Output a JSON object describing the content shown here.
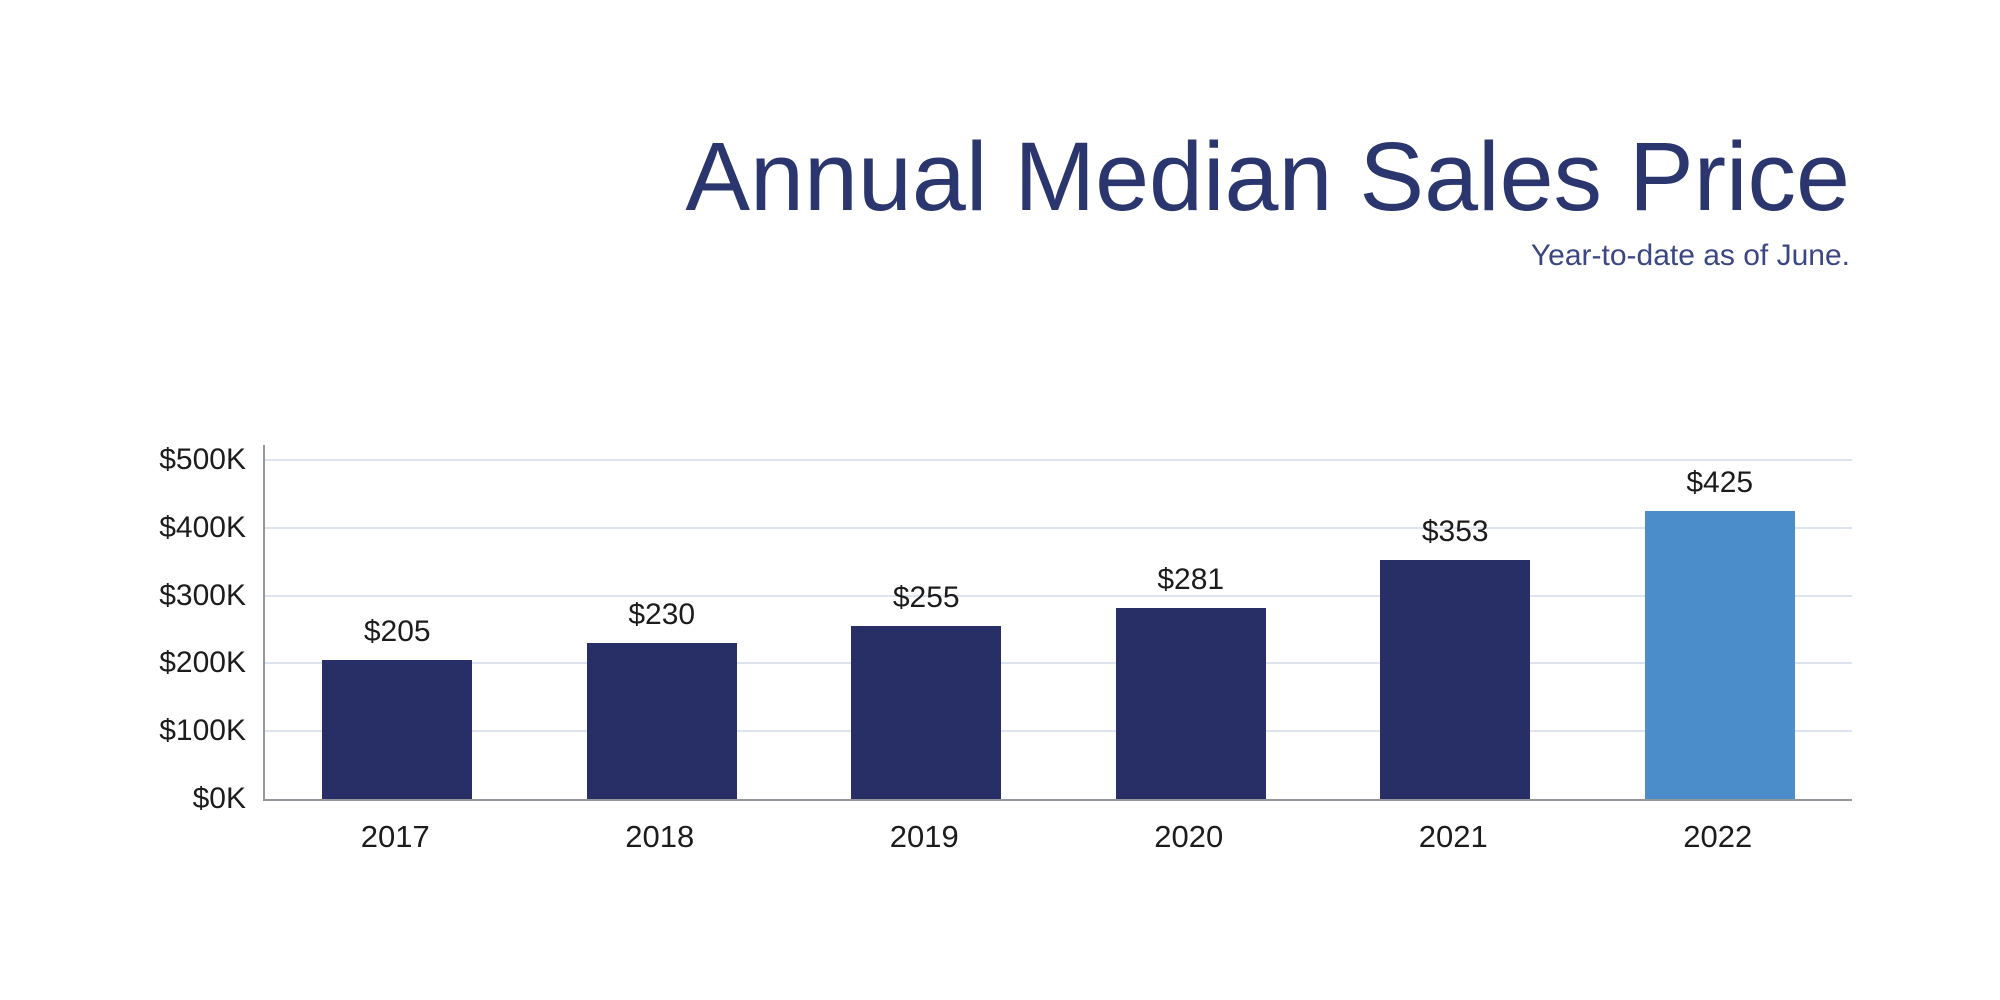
{
  "header": {
    "title": "Annual Median Sales Price",
    "subtitle": "Year-to-date as of June."
  },
  "colors": {
    "bar": "#282e66",
    "bar_highlight": "#4b8ccb",
    "gridline": "#dde4ef",
    "axis": "#95979c",
    "title": "#2b356e",
    "subtitle": "#3b4682",
    "label": "#1c1c1e"
  },
  "chart_data": {
    "type": "bar",
    "title": "Annual Median Sales Price",
    "subtitle": "Year-to-date as of June.",
    "categories": [
      "2017",
      "2018",
      "2019",
      "2020",
      "2021",
      "2022"
    ],
    "values": [
      205,
      230,
      255,
      281,
      353,
      425
    ],
    "value_labels": [
      "$205",
      "$230",
      "$255",
      "$281",
      "$353",
      "$425"
    ],
    "highlight_index": 5,
    "xlabel": "",
    "ylabel": "",
    "ylim": [
      0,
      500
    ],
    "y_ticks": [
      {
        "value": 0,
        "label": "$0K"
      },
      {
        "value": 100,
        "label": "$100K"
      },
      {
        "value": 200,
        "label": "$200K"
      },
      {
        "value": 300,
        "label": "$300K"
      },
      {
        "value": 400,
        "label": "$400K"
      },
      {
        "value": 500,
        "label": "$500K"
      }
    ],
    "grid": "horizontal",
    "legend": "none"
  }
}
